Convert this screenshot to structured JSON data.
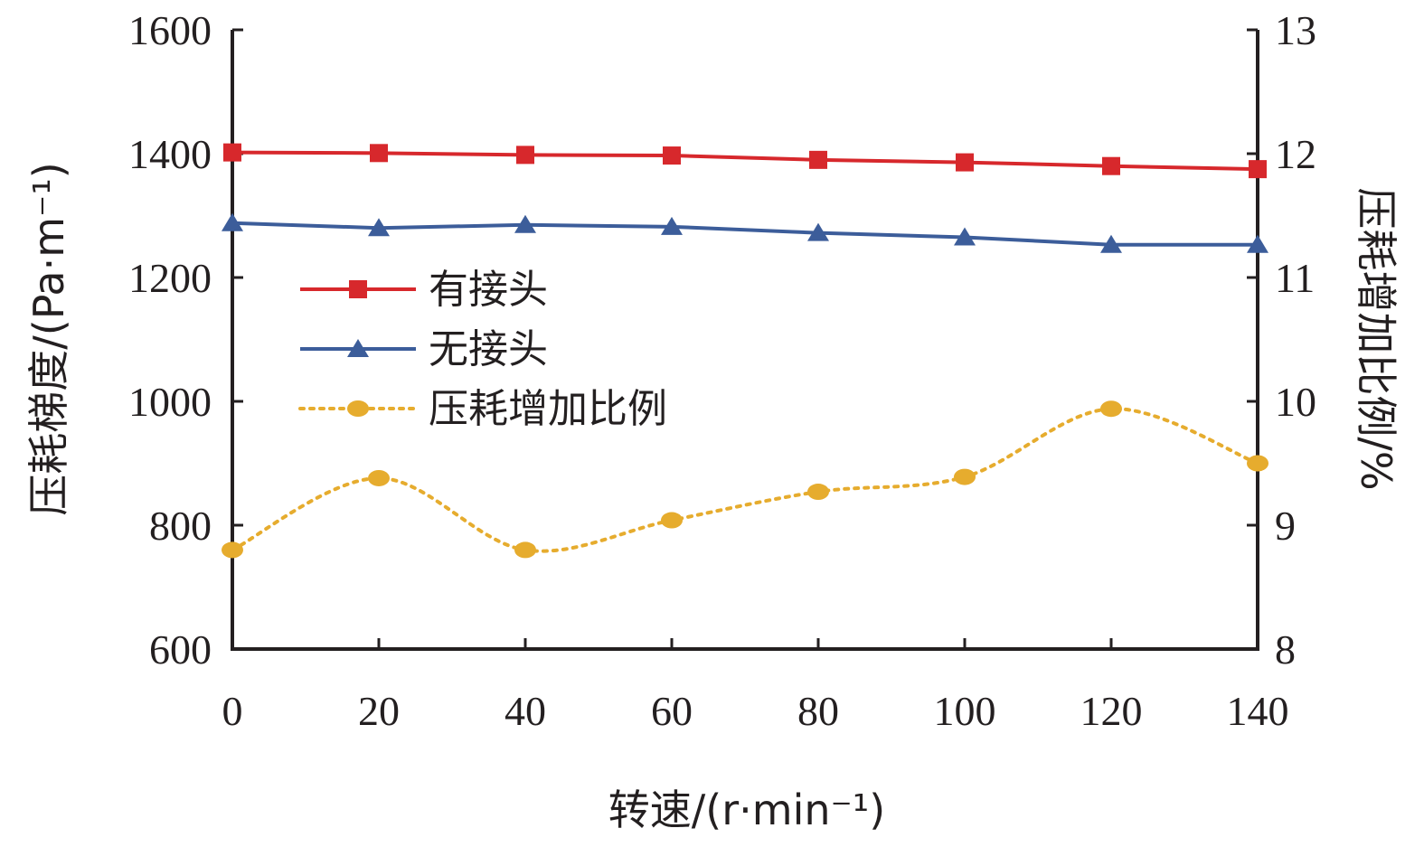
{
  "chart_data": {
    "type": "line",
    "x": [
      0,
      20,
      40,
      60,
      80,
      100,
      120,
      140
    ],
    "xlabel": "转速/(r·min⁻¹)",
    "ylabel": "压耗梯度/(Pa·m⁻¹)",
    "y2label": "压耗增加比例/%",
    "xlim": [
      0,
      140
    ],
    "ylim": [
      600,
      1600
    ],
    "y2lim": [
      8,
      13
    ],
    "x_ticks": [
      "0",
      "20",
      "40",
      "60",
      "80",
      "100",
      "120",
      "140"
    ],
    "y_ticks": [
      "600",
      "800",
      "1000",
      "1200",
      "1400",
      "1600"
    ],
    "y2_ticks": [
      "8",
      "9",
      "10",
      "11",
      "12",
      "13"
    ],
    "grid": false,
    "legend_position": "center-left",
    "series": [
      {
        "name": "有接头",
        "axis": "left",
        "color": "#d7282c",
        "marker": "square",
        "line": "solid",
        "values": [
          1402,
          1401,
          1398,
          1397,
          1390,
          1386,
          1380,
          1375
        ]
      },
      {
        "name": "无接头",
        "axis": "left",
        "color": "#3c5d9a",
        "marker": "triangle",
        "line": "solid",
        "values": [
          1288,
          1280,
          1285,
          1282,
          1272,
          1265,
          1253,
          1253
        ]
      },
      {
        "name": "压耗增加比例",
        "axis": "right",
        "color": "#e6ac2e",
        "marker": "circle",
        "line": "dotted",
        "values": [
          8.8,
          9.38,
          8.8,
          9.04,
          9.27,
          9.39,
          9.94,
          9.5
        ]
      }
    ]
  }
}
